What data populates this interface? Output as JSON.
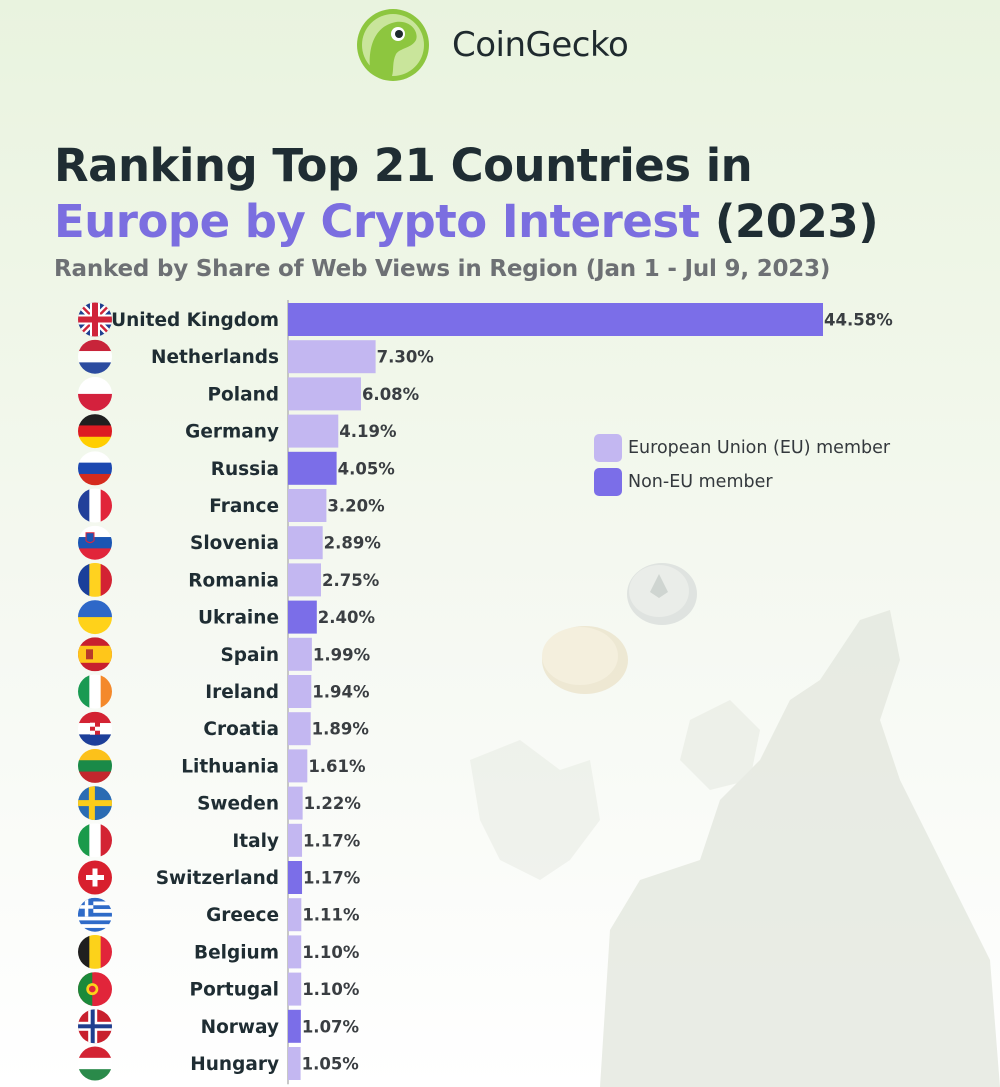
{
  "brand": "CoinGecko",
  "header": {
    "title_line1": "Ranking Top 21 Countries in",
    "title_line2_accent": "Europe by Crypto Interest",
    "title_line2_rest": " (2023)",
    "subtitle": "Ranked by Share of Web Views in Region (Jan 1 - Jul 9, 2023)"
  },
  "colors": {
    "eu": "#c3b7f1",
    "non_eu": "#7b6ee8",
    "axis": "#b5b5b5",
    "label": "#1f2d33"
  },
  "legend": {
    "eu_label": "European Union (EU) member",
    "non_eu_label": "Non-EU member"
  },
  "chart_data": {
    "type": "bar",
    "orientation": "horizontal",
    "categories": [
      "United Kingdom",
      "Netherlands",
      "Poland",
      "Germany",
      "Russia",
      "France",
      "Slovenia",
      "Romania",
      "Ukraine",
      "Spain",
      "Ireland",
      "Croatia",
      "Lithuania",
      "Sweden",
      "Italy",
      "Switzerland",
      "Greece",
      "Belgium",
      "Portugal",
      "Norway",
      "Hungary"
    ],
    "values": [
      44.58,
      7.3,
      6.08,
      4.19,
      4.05,
      3.2,
      2.89,
      2.75,
      2.4,
      1.99,
      1.94,
      1.89,
      1.61,
      1.22,
      1.17,
      1.17,
      1.11,
      1.1,
      1.1,
      1.07,
      1.05
    ],
    "value_labels": [
      "44.58%",
      "7.30%",
      "6.08%",
      "4.19%",
      "4.05%",
      "3.20%",
      "2.89%",
      "2.75%",
      "2.40%",
      "1.99%",
      "1.94%",
      "1.89%",
      "1.61%",
      "1.22%",
      "1.17%",
      "1.17%",
      "1.11%",
      "1.10%",
      "1.10%",
      "1.07%",
      "1.05%"
    ],
    "eu_member": [
      false,
      true,
      true,
      true,
      false,
      true,
      true,
      true,
      false,
      true,
      true,
      true,
      true,
      true,
      true,
      false,
      true,
      true,
      true,
      false,
      true
    ],
    "flags": [
      "uk-flag-icon",
      "netherlands-flag-icon",
      "poland-flag-icon",
      "germany-flag-icon",
      "russia-flag-icon",
      "france-flag-icon",
      "slovenia-flag-icon",
      "romania-flag-icon",
      "ukraine-flag-icon",
      "spain-flag-icon",
      "ireland-flag-icon",
      "croatia-flag-icon",
      "lithuania-flag-icon",
      "sweden-flag-icon",
      "italy-flag-icon",
      "switzerland-flag-icon",
      "greece-flag-icon",
      "belgium-flag-icon",
      "portugal-flag-icon",
      "norway-flag-icon",
      "hungary-flag-icon"
    ],
    "title": "Ranking Top 21 Countries in Europe by Crypto Interest (2023)",
    "subtitle": "Ranked by Share of Web Views in Region (Jan 1 - Jul 9, 2023)",
    "legend": [
      "European Union (EU) member",
      "Non-EU member"
    ],
    "legend_position": "right-top",
    "grid": false
  }
}
